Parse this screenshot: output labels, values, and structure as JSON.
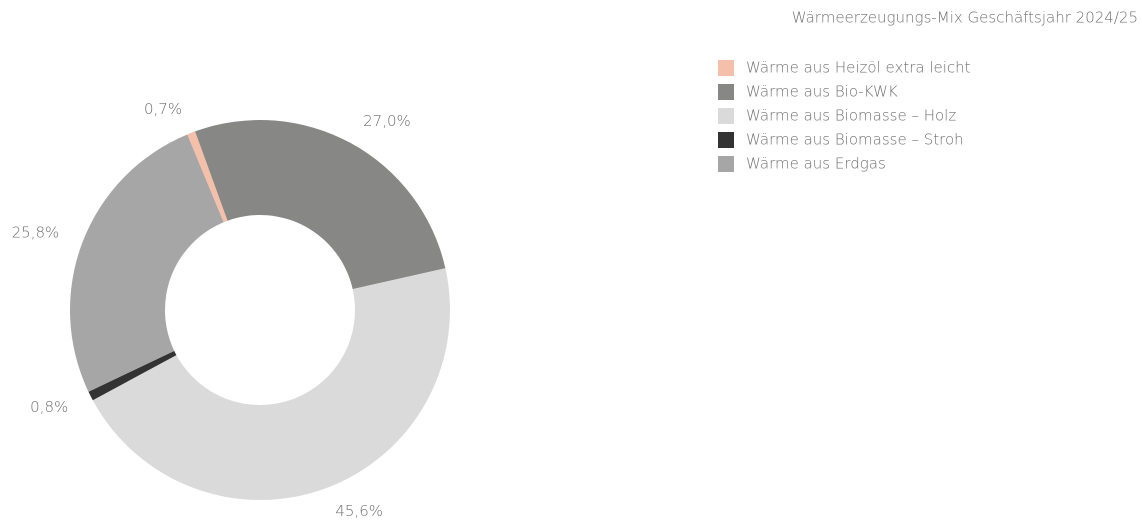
{
  "chart_data": {
    "type": "pie",
    "donut": true,
    "title": "Wärmeerzeugungs-Mix Geschäftsjahr 2024/25",
    "categories": [
      "Wärme aus Heizöl extra leicht",
      "Wärme aus Bio-KWK",
      "Wärme aus Biomasse – Holz",
      "Wärme aus Biomasse – Stroh",
      "Wärme aus Erdgas"
    ],
    "values": [
      0.7,
      27.0,
      45.6,
      0.8,
      25.8
    ],
    "value_labels": [
      "0,7%",
      "27,0%",
      "45,6%",
      "0,8%",
      "25,8%"
    ],
    "colors": [
      "#f5c0aa",
      "#878785",
      "#dadada",
      "#333333",
      "#a6a6a6"
    ],
    "legend": "top-right"
  }
}
